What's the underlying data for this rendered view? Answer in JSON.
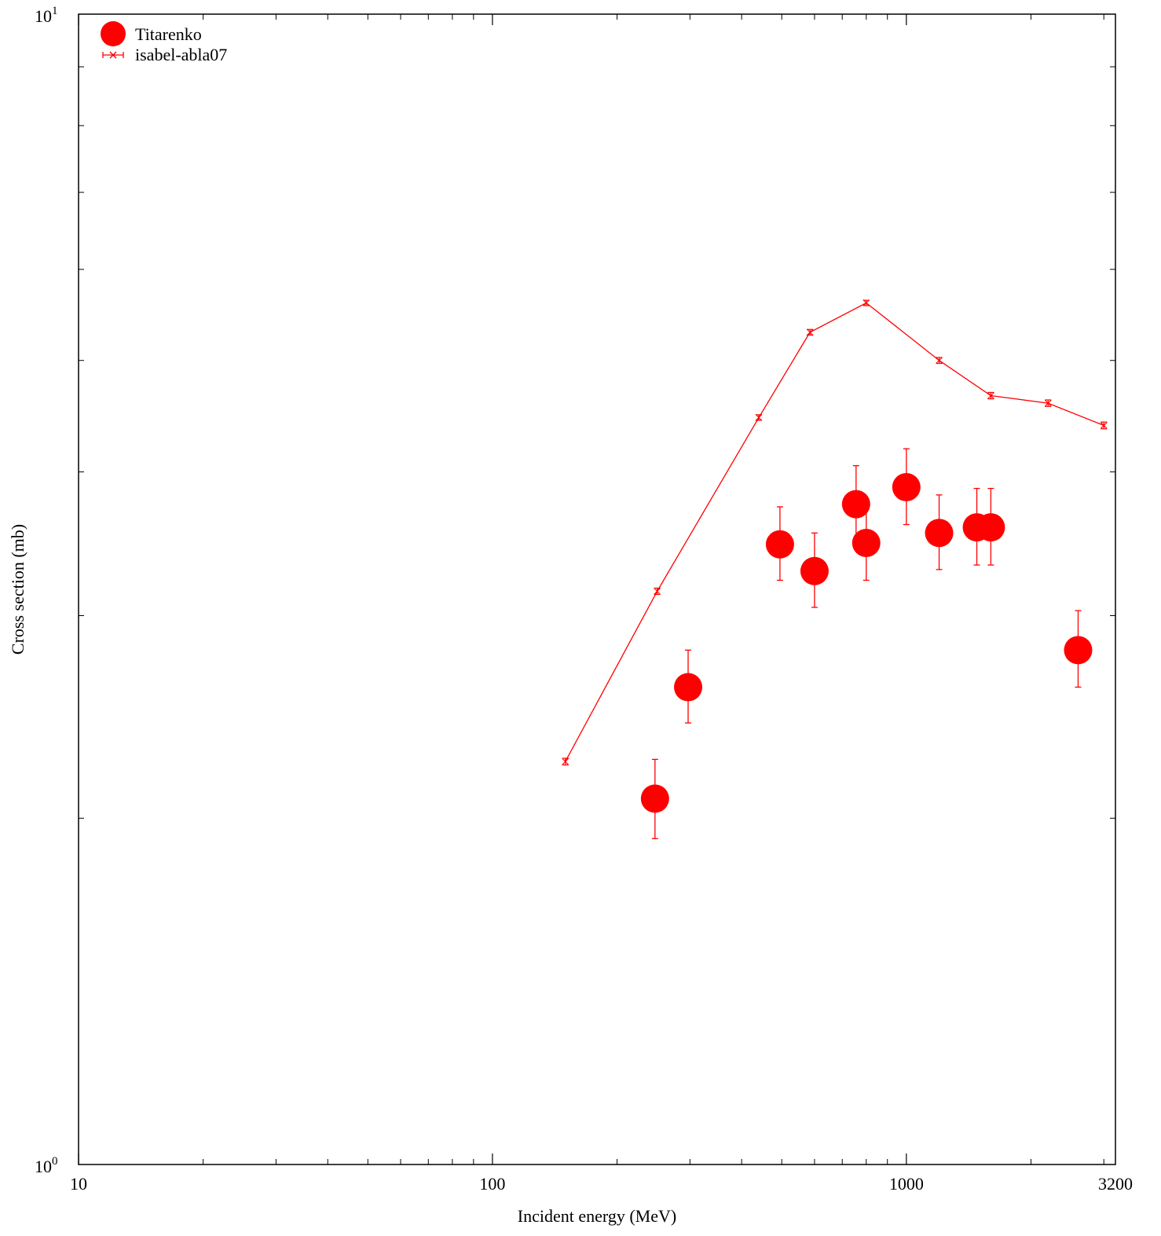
{
  "chart_data": {
    "type": "scatter",
    "title": "",
    "xlabel": "Incident energy (MeV)",
    "ylabel": "Cross section (mb)",
    "x_scale": "log",
    "y_scale": "log",
    "xlim": [
      10,
      3200
    ],
    "ylim": [
      1,
      10
    ],
    "x_tick_labels": [
      "10",
      "100",
      "1000",
      "3200"
    ],
    "y_tick_labels": [
      {
        "base": "10",
        "exp": "0"
      },
      {
        "base": "10",
        "exp": "1"
      }
    ],
    "grid": false,
    "legend_position": "top-left",
    "series": [
      {
        "name": "Titarenko",
        "style": "points-with-errorbars",
        "color": "#ff0000",
        "points": [
          {
            "x": 247,
            "y": 2.08,
            "err_low": 0.16,
            "err_high": 0.17
          },
          {
            "x": 297,
            "y": 2.6,
            "err_low": 0.18,
            "err_high": 0.2
          },
          {
            "x": 495,
            "y": 3.46,
            "err_low": 0.24,
            "err_high": 0.27
          },
          {
            "x": 600,
            "y": 3.28,
            "err_low": 0.23,
            "err_high": 0.26
          },
          {
            "x": 756,
            "y": 3.75,
            "err_low": 0.27,
            "err_high": 0.3
          },
          {
            "x": 800,
            "y": 3.47,
            "err_low": 0.25,
            "err_high": 0.28
          },
          {
            "x": 1000,
            "y": 3.88,
            "err_low": 0.28,
            "err_high": 0.31
          },
          {
            "x": 1200,
            "y": 3.54,
            "err_low": 0.25,
            "err_high": 0.28
          },
          {
            "x": 1480,
            "y": 3.58,
            "err_low": 0.26,
            "err_high": 0.29
          },
          {
            "x": 1600,
            "y": 3.58,
            "err_low": 0.26,
            "err_high": 0.29
          },
          {
            "x": 2600,
            "y": 2.8,
            "err_low": 0.2,
            "err_high": 0.23
          }
        ]
      },
      {
        "name": "isabel-abla07",
        "style": "linespoints-with-errorbars",
        "color": "#ff0000",
        "points": [
          {
            "x": 150,
            "y": 2.24,
            "err": 0.015
          },
          {
            "x": 250,
            "y": 3.15,
            "err": 0.02
          },
          {
            "x": 440,
            "y": 4.46,
            "err": 0.025
          },
          {
            "x": 585,
            "y": 5.29,
            "err": 0.03
          },
          {
            "x": 800,
            "y": 5.61,
            "err": 0.03
          },
          {
            "x": 1200,
            "y": 5.0,
            "err": 0.03
          },
          {
            "x": 1600,
            "y": 4.66,
            "err": 0.03
          },
          {
            "x": 2200,
            "y": 4.59,
            "err": 0.03
          },
          {
            "x": 3000,
            "y": 4.39,
            "err": 0.03
          }
        ]
      }
    ]
  }
}
